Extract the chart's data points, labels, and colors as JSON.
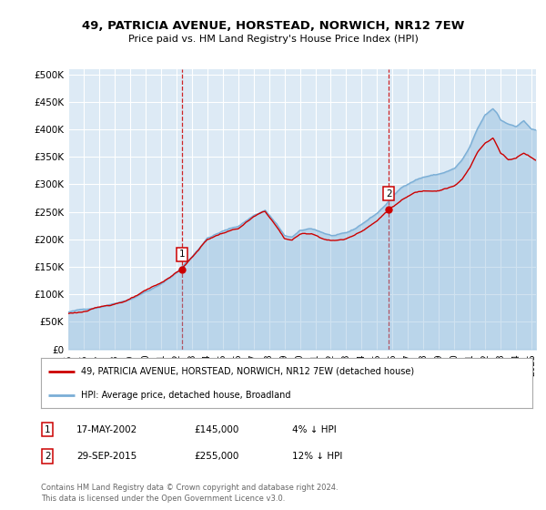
{
  "title_line1": "49, PATRICIA AVENUE, HORSTEAD, NORWICH, NR12 7EW",
  "title_line2": "Price paid vs. HM Land Registry's House Price Index (HPI)",
  "ylabel_ticks": [
    "£0",
    "£50K",
    "£100K",
    "£150K",
    "£200K",
    "£250K",
    "£300K",
    "£350K",
    "£400K",
    "£450K",
    "£500K"
  ],
  "ytick_values": [
    0,
    50000,
    100000,
    150000,
    200000,
    250000,
    300000,
    350000,
    400000,
    450000,
    500000
  ],
  "ylim": [
    0,
    510000
  ],
  "xlim_start": 1995.0,
  "xlim_end": 2025.3,
  "background_color": "#ddeaf5",
  "plot_bg_color": "#ddeaf5",
  "grid_color": "#ffffff",
  "hpi_color": "#7aaed6",
  "price_color": "#cc0000",
  "purchase1_x": 2002.37,
  "purchase1_y": 145000,
  "purchase2_x": 2015.75,
  "purchase2_y": 255000,
  "legend_property": "49, PATRICIA AVENUE, HORSTEAD, NORWICH, NR12 7EW (detached house)",
  "legend_hpi": "HPI: Average price, detached house, Broadland",
  "table_rows": [
    [
      "1",
      "17-MAY-2002",
      "£145,000",
      "4% ↓ HPI"
    ],
    [
      "2",
      "29-SEP-2015",
      "£255,000",
      "12% ↓ HPI"
    ]
  ],
  "footer_text": "Contains HM Land Registry data © Crown copyright and database right 2024.\nThis data is licensed under the Open Government Licence v3.0.",
  "hpi_seed": 42,
  "price_seed": 123
}
